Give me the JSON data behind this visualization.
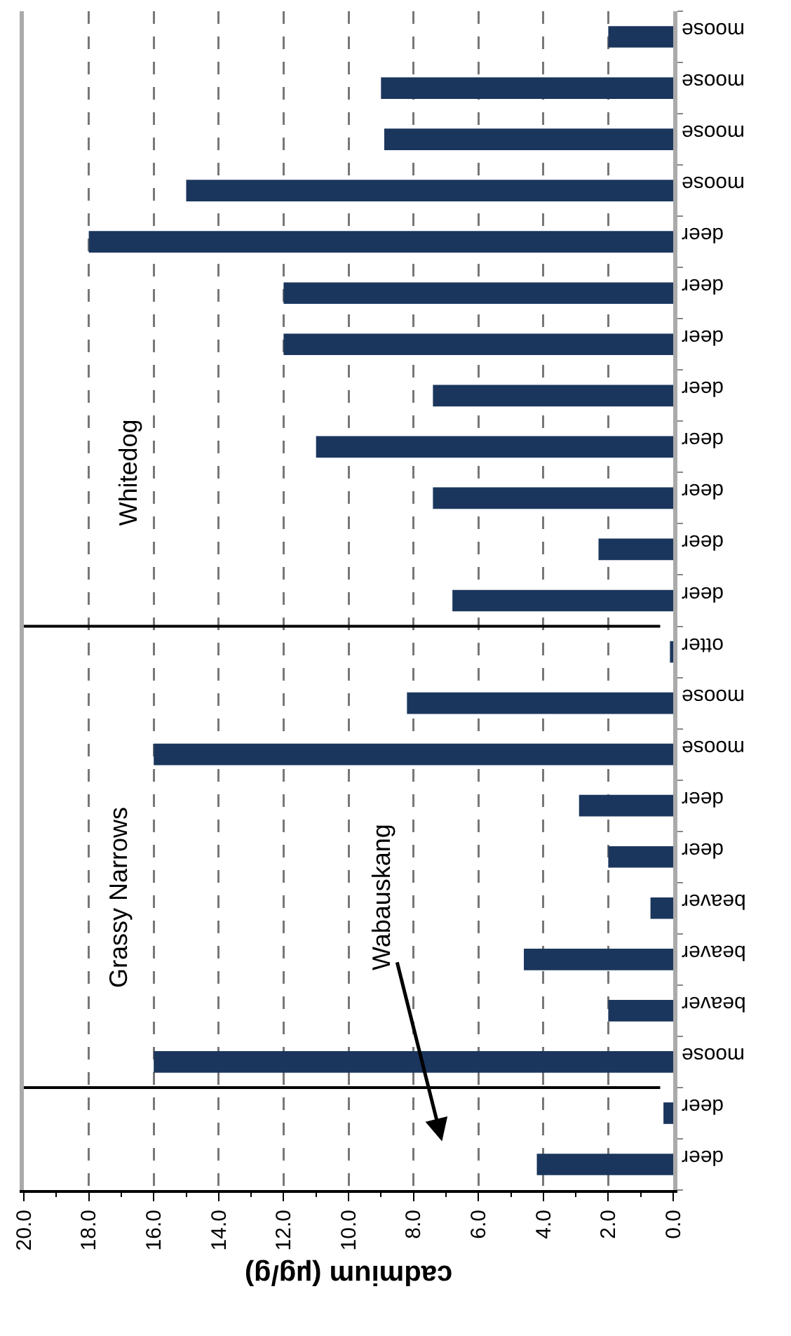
{
  "chart_data": {
    "type": "bar",
    "orientation": "horizontal",
    "xlabel": "cadmium (µg/g)",
    "categories": [
      "moose",
      "moose",
      "moose",
      "moose",
      "deer",
      "deer",
      "deer",
      "deer",
      "deer",
      "deer",
      "deer",
      "deer",
      "otter",
      "moose",
      "moose",
      "deer",
      "deer",
      "beaver",
      "beaver",
      "beaver",
      "moose",
      "deer",
      "deer"
    ],
    "values": [
      2.0,
      9.0,
      8.9,
      15.0,
      18.0,
      12.0,
      12.0,
      7.4,
      11.0,
      7.4,
      2.3,
      6.8,
      0.1,
      8.2,
      16.0,
      2.9,
      2.0,
      0.7,
      4.6,
      2.0,
      16.0,
      0.3,
      4.2
    ],
    "color": "#1b365d",
    "xlim": [
      20,
      0
    ],
    "xticks": [
      {
        "value": 20,
        "label": "20.0"
      },
      {
        "value": 18,
        "label": "18.0"
      },
      {
        "value": 16,
        "label": "16.0"
      },
      {
        "value": 14,
        "label": "14.0"
      },
      {
        "value": 12,
        "label": "12.0"
      },
      {
        "value": 10,
        "label": "10.0"
      },
      {
        "value": 8,
        "label": "8.0"
      },
      {
        "value": 6,
        "label": "6.0"
      },
      {
        "value": 4,
        "label": "4.0"
      },
      {
        "value": 2,
        "label": "2.0"
      },
      {
        "value": 0,
        "label": "0.0"
      }
    ],
    "grid": "x",
    "annotations": [
      "Whitedog",
      "Grassy Narrows",
      "Wabauskang"
    ]
  }
}
